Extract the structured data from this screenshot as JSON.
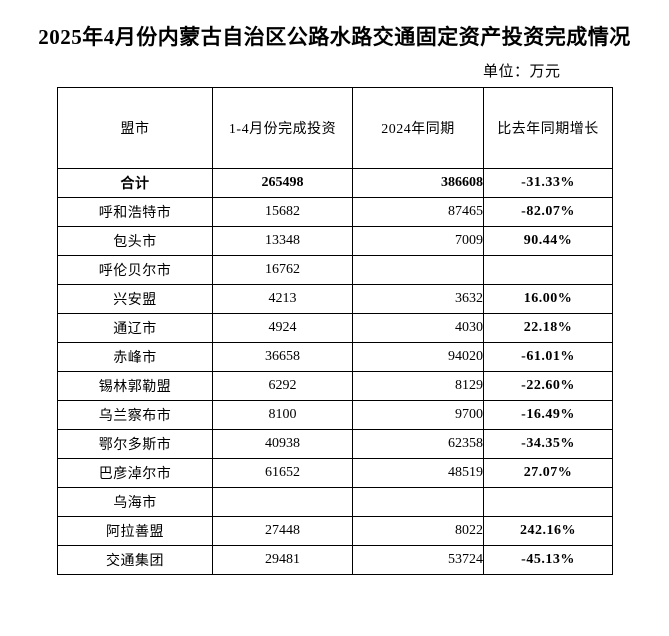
{
  "title": "2025年4月份内蒙古自治区公路水路交通固定资产投资完成情况",
  "unit_label": "单位：万元",
  "colors": {
    "background": "#ffffff",
    "text": "#000000",
    "border": "#000000"
  },
  "table": {
    "columns": [
      "盟市",
      "1-4月份完成投资",
      "2024年同期",
      "比去年同期增长"
    ],
    "rows": [
      {
        "region": "合计",
        "current": "265498",
        "previous": "386608",
        "growth": "-31.33%",
        "bold": true
      },
      {
        "region": "呼和浩特市",
        "current": "15682",
        "previous": "87465",
        "growth": "-82.07%",
        "bold": false
      },
      {
        "region": "包头市",
        "current": "13348",
        "previous": "7009",
        "growth": "90.44%",
        "bold": false
      },
      {
        "region": "呼伦贝尔市",
        "current": "16762",
        "previous": "",
        "growth": "",
        "bold": false
      },
      {
        "region": "兴安盟",
        "current": "4213",
        "previous": "3632",
        "growth": "16.00%",
        "bold": false
      },
      {
        "region": "通辽市",
        "current": "4924",
        "previous": "4030",
        "growth": "22.18%",
        "bold": false
      },
      {
        "region": "赤峰市",
        "current": "36658",
        "previous": "94020",
        "growth": "-61.01%",
        "bold": false
      },
      {
        "region": "锡林郭勒盟",
        "current": "6292",
        "previous": "8129",
        "growth": "-22.60%",
        "bold": false
      },
      {
        "region": "乌兰察布市",
        "current": "8100",
        "previous": "9700",
        "growth": "-16.49%",
        "bold": false
      },
      {
        "region": "鄂尔多斯市",
        "current": "40938",
        "previous": "62358",
        "growth": "-34.35%",
        "bold": false
      },
      {
        "region": "巴彦淖尔市",
        "current": "61652",
        "previous": "48519",
        "growth": "27.07%",
        "bold": false
      },
      {
        "region": "乌海市",
        "current": "",
        "previous": "",
        "growth": "",
        "bold": false
      },
      {
        "region": "阿拉善盟",
        "current": "27448",
        "previous": "8022",
        "growth": "242.16%",
        "bold": false
      },
      {
        "region": "交通集团",
        "current": "29481",
        "previous": "53724",
        "growth": "-45.13%",
        "bold": false
      }
    ]
  }
}
